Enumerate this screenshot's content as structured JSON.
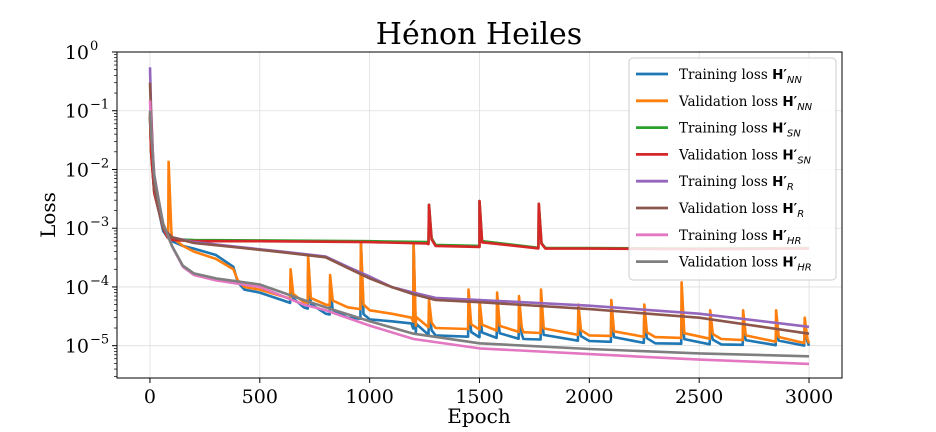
{
  "chart_data": {
    "type": "line",
    "title": "Hénon Heiles",
    "xlabel": "Epoch",
    "ylabel": "Loss",
    "xlim": [
      -150,
      3150
    ],
    "ylim_log10": [
      -5.55,
      0
    ],
    "yscale": "log",
    "grid": true,
    "legend_position": "top-right",
    "x_ticks": [
      {
        "value": 0,
        "label": "0"
      },
      {
        "value": 500,
        "label": "500"
      },
      {
        "value": 1000,
        "label": "1000"
      },
      {
        "value": 1500,
        "label": "1500"
      },
      {
        "value": 2000,
        "label": "2000"
      },
      {
        "value": 2500,
        "label": "2500"
      },
      {
        "value": 3000,
        "label": "3000"
      }
    ],
    "y_ticks": [
      {
        "exp": 0,
        "base": "10",
        "sup": "0"
      },
      {
        "exp": -1,
        "base": "10",
        "sup": "−1"
      },
      {
        "exp": -2,
        "base": "10",
        "sup": "−2"
      },
      {
        "exp": -3,
        "base": "10",
        "sup": "−3"
      },
      {
        "exp": -4,
        "base": "10",
        "sup": "−4"
      },
      {
        "exp": -5,
        "base": "10",
        "sup": "−5"
      }
    ],
    "series": [
      {
        "name": "Training loss H'NN",
        "label_prefix": "Training loss",
        "symbol": "H′",
        "sub": "NN",
        "color": "#1f77b4",
        "points": [
          [
            0,
            0.09
          ],
          [
            5,
            0.02
          ],
          [
            20,
            0.004
          ],
          [
            40,
            0.002
          ],
          [
            60,
            0.0009
          ],
          [
            80,
            0.0007
          ],
          [
            100,
            0.0006
          ],
          [
            150,
            0.0005
          ],
          [
            200,
            0.00045
          ],
          [
            300,
            0.00035
          ],
          [
            380,
            0.00022
          ],
          [
            400,
            0.00012
          ],
          [
            430,
            9e-05
          ],
          [
            500,
            8e-05
          ],
          [
            600,
            6e-05
          ],
          [
            700,
            4.5e-05
          ],
          [
            800,
            3.5e-05
          ],
          [
            900,
            3e-05
          ],
          [
            1000,
            2.8e-05
          ],
          [
            1100,
            2.6e-05
          ],
          [
            1190,
            2.4e-05
          ],
          [
            1210,
            1.6e-05
          ],
          [
            1300,
            1.5e-05
          ],
          [
            1500,
            1.4e-05
          ],
          [
            1700,
            1.3e-05
          ],
          [
            2000,
            1.2e-05
          ],
          [
            2300,
            1.1e-05
          ],
          [
            2600,
            1.05e-05
          ],
          [
            3000,
            1e-05
          ]
        ],
        "spikes": [
          [
            640,
            0.00013
          ],
          [
            720,
            0.00018
          ],
          [
            820,
            0.00011
          ],
          [
            960,
            0.0006
          ],
          [
            1200,
            0.00055
          ],
          [
            1270,
            4e-05
          ],
          [
            1450,
            5e-05
          ],
          [
            1500,
            4e-05
          ],
          [
            1580,
            4e-05
          ],
          [
            1680,
            4e-05
          ],
          [
            1780,
            4e-05
          ],
          [
            1950,
            3e-05
          ],
          [
            2100,
            3e-05
          ],
          [
            2250,
            3e-05
          ],
          [
            2420,
            4e-05
          ],
          [
            2550,
            2e-05
          ],
          [
            2700,
            2e-05
          ],
          [
            2850,
            2e-05
          ],
          [
            2980,
            2e-05
          ]
        ]
      },
      {
        "name": "Validation loss H'NN",
        "label_prefix": "Validation loss",
        "symbol": "H′",
        "sub": "NN",
        "color": "#ff7f0e",
        "points": [
          [
            0,
            0.09
          ],
          [
            5,
            0.02
          ],
          [
            20,
            0.005
          ],
          [
            40,
            0.002
          ],
          [
            60,
            0.0012
          ],
          [
            80,
            0.0008
          ],
          [
            100,
            0.0007
          ],
          [
            150,
            0.0005
          ],
          [
            200,
            0.0004
          ],
          [
            300,
            0.0003
          ],
          [
            380,
            0.0002
          ],
          [
            400,
            0.00013
          ],
          [
            430,
            0.0001
          ],
          [
            500,
            9e-05
          ],
          [
            600,
            7e-05
          ],
          [
            700,
            5.5e-05
          ],
          [
            800,
            5e-05
          ],
          [
            900,
            4.5e-05
          ],
          [
            1000,
            4e-05
          ],
          [
            1100,
            3.5e-05
          ],
          [
            1190,
            3e-05
          ],
          [
            1210,
            2.2e-05
          ],
          [
            1300,
            2e-05
          ],
          [
            1500,
            1.9e-05
          ],
          [
            1700,
            1.7e-05
          ],
          [
            2000,
            1.5e-05
          ],
          [
            2300,
            1.4e-05
          ],
          [
            2600,
            1.3e-05
          ],
          [
            3000,
            1.1e-05
          ]
        ],
        "spikes": [
          [
            85,
            0.0135
          ],
          [
            640,
            0.0002
          ],
          [
            720,
            0.00035
          ],
          [
            820,
            0.00016
          ],
          [
            960,
            0.00058
          ],
          [
            1200,
            0.00055
          ],
          [
            1270,
            6e-05
          ],
          [
            1450,
            9e-05
          ],
          [
            1500,
            6e-05
          ],
          [
            1580,
            8e-05
          ],
          [
            1680,
            7e-05
          ],
          [
            1780,
            9e-05
          ],
          [
            1950,
            5e-05
          ],
          [
            2100,
            6e-05
          ],
          [
            2250,
            5e-05
          ],
          [
            2420,
            0.00012
          ],
          [
            2550,
            4e-05
          ],
          [
            2700,
            4e-05
          ],
          [
            2850,
            4e-05
          ],
          [
            2980,
            3e-05
          ]
        ]
      },
      {
        "name": "Training loss H'SN",
        "label_prefix": "Training loss",
        "symbol": "H′",
        "sub": "SN",
        "color": "#2ca02c",
        "points": [
          [
            0,
            0.08
          ],
          [
            5,
            0.02
          ],
          [
            20,
            0.004
          ],
          [
            40,
            0.002
          ],
          [
            60,
            0.001
          ],
          [
            80,
            0.0007
          ],
          [
            100,
            0.00065
          ],
          [
            200,
            0.00063
          ],
          [
            500,
            0.00062
          ],
          [
            1000,
            0.0006
          ],
          [
            1260,
            0.00058
          ],
          [
            1300,
            0.00052
          ],
          [
            1500,
            0.0005
          ],
          [
            1800,
            0.00046
          ],
          [
            2000,
            0.00046
          ],
          [
            2500,
            0.00045
          ],
          [
            3000,
            0.00046
          ]
        ],
        "spikes": [
          [
            1270,
            0.0025
          ],
          [
            1500,
            0.0029
          ],
          [
            1770,
            0.0026
          ]
        ]
      },
      {
        "name": "Validation loss H'SN",
        "label_prefix": "Validation loss",
        "symbol": "H′",
        "sub": "SN",
        "color": "#d62728",
        "points": [
          [
            0,
            0.08
          ],
          [
            5,
            0.02
          ],
          [
            20,
            0.004
          ],
          [
            40,
            0.002
          ],
          [
            60,
            0.001
          ],
          [
            80,
            0.0007
          ],
          [
            100,
            0.00063
          ],
          [
            200,
            0.0006
          ],
          [
            500,
            0.0006
          ],
          [
            1000,
            0.00058
          ],
          [
            1260,
            0.00055
          ],
          [
            1300,
            0.0005
          ],
          [
            1500,
            0.00048
          ],
          [
            1800,
            0.00045
          ],
          [
            2000,
            0.00045
          ],
          [
            2500,
            0.00044
          ],
          [
            3000,
            0.00045
          ]
        ],
        "spikes": [
          [
            1270,
            0.0025
          ],
          [
            1500,
            0.0029
          ],
          [
            1770,
            0.0026
          ]
        ]
      },
      {
        "name": "Training loss H'R",
        "label_prefix": "Training loss",
        "symbol": "H′",
        "sub": "R",
        "color": "#9467bd",
        "points": [
          [
            0,
            0.55
          ],
          [
            5,
            0.1
          ],
          [
            20,
            0.005
          ],
          [
            40,
            0.002
          ],
          [
            60,
            0.001
          ],
          [
            100,
            0.0007
          ],
          [
            200,
            0.00058
          ],
          [
            400,
            0.00048
          ],
          [
            600,
            0.0004
          ],
          [
            800,
            0.00033
          ],
          [
            900,
            0.00022
          ],
          [
            1000,
            0.00015
          ],
          [
            1100,
            0.0001
          ],
          [
            1200,
            8e-05
          ],
          [
            1300,
            6.5e-05
          ],
          [
            1500,
            6e-05
          ],
          [
            2000,
            4.8e-05
          ],
          [
            2500,
            3.5e-05
          ],
          [
            3000,
            2.1e-05
          ]
        ],
        "spikes": []
      },
      {
        "name": "Validation loss H'R",
        "label_prefix": "Validation loss",
        "symbol": "H′",
        "sub": "R",
        "color": "#8c564b",
        "points": [
          [
            0,
            0.3
          ],
          [
            5,
            0.08
          ],
          [
            20,
            0.005
          ],
          [
            40,
            0.002
          ],
          [
            60,
            0.001
          ],
          [
            100,
            0.0007
          ],
          [
            200,
            0.00056
          ],
          [
            400,
            0.00047
          ],
          [
            600,
            0.00039
          ],
          [
            800,
            0.00032
          ],
          [
            900,
            0.00021
          ],
          [
            1000,
            0.00014
          ],
          [
            1100,
            0.0001
          ],
          [
            1200,
            7.5e-05
          ],
          [
            1300,
            6e-05
          ],
          [
            1500,
            5.5e-05
          ],
          [
            2000,
            4.2e-05
          ],
          [
            2500,
            3e-05
          ],
          [
            3000,
            1.6e-05
          ]
        ],
        "spikes": []
      },
      {
        "name": "Training loss H'HR",
        "label_prefix": "Training loss",
        "symbol": "H′",
        "sub": "HR",
        "color": "#e377c2",
        "points": [
          [
            0,
            0.15
          ],
          [
            5,
            0.05
          ],
          [
            20,
            0.008
          ],
          [
            40,
            0.003
          ],
          [
            60,
            0.0012
          ],
          [
            100,
            0.0005
          ],
          [
            150,
            0.00022
          ],
          [
            200,
            0.00016
          ],
          [
            300,
            0.00013
          ],
          [
            500,
            0.0001
          ],
          [
            700,
            5e-05
          ],
          [
            800,
            4e-05
          ],
          [
            1000,
            2.2e-05
          ],
          [
            1200,
            1.3e-05
          ],
          [
            1500,
            9e-06
          ],
          [
            2000,
            7.2e-06
          ],
          [
            2500,
            5.8e-06
          ],
          [
            3000,
            4.9e-06
          ]
        ],
        "spikes": []
      },
      {
        "name": "Validation loss H'HR",
        "label_prefix": "Validation loss",
        "symbol": "H′",
        "sub": "HR",
        "color": "#7f7f7f",
        "points": [
          [
            0,
            0.1
          ],
          [
            5,
            0.04
          ],
          [
            20,
            0.008
          ],
          [
            40,
            0.003
          ],
          [
            60,
            0.0012
          ],
          [
            100,
            0.0005
          ],
          [
            150,
            0.00023
          ],
          [
            200,
            0.00017
          ],
          [
            300,
            0.00014
          ],
          [
            500,
            0.00011
          ],
          [
            700,
            6e-05
          ],
          [
            800,
            4.5e-05
          ],
          [
            1000,
            2.6e-05
          ],
          [
            1200,
            1.6e-05
          ],
          [
            1500,
            1.1e-05
          ],
          [
            2000,
            8.8e-06
          ],
          [
            2500,
            7.4e-06
          ],
          [
            3000,
            6.6e-06
          ]
        ],
        "spikes": []
      }
    ]
  }
}
